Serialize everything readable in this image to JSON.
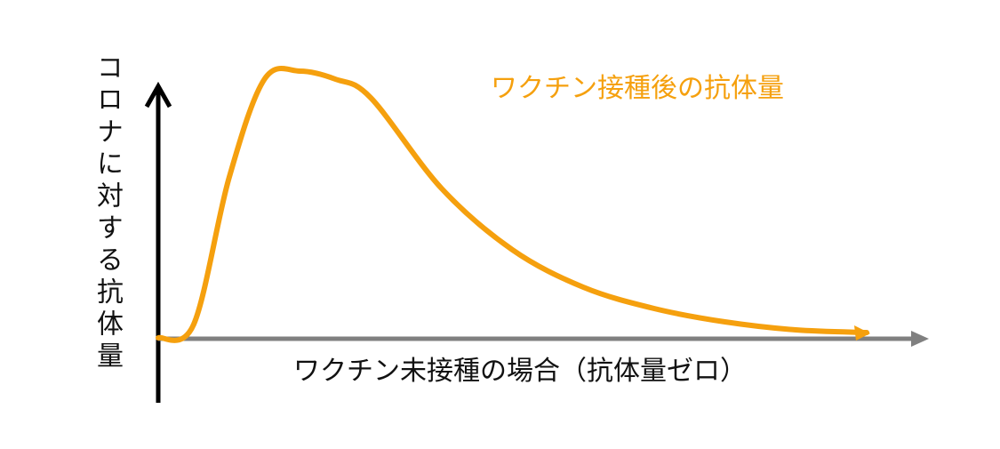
{
  "chart_data": {
    "type": "line",
    "title": "",
    "ylabel": "コロナに対する抗体量",
    "xlabel": "",
    "grid": false,
    "legend": "none",
    "colors": {
      "vaccinated": "#f5a00e",
      "baseline": "#808080",
      "y_axis": "#000000"
    },
    "series": [
      {
        "name": "ワクチン接種後の抗体量",
        "x": [
          0,
          0.05,
          0.1,
          0.15,
          0.2,
          0.25,
          0.3,
          0.4,
          0.5,
          0.6,
          0.7,
          0.8,
          0.9,
          1.0
        ],
        "y": [
          0,
          0.05,
          0.6,
          0.97,
          1.0,
          0.97,
          0.9,
          0.56,
          0.33,
          0.19,
          0.11,
          0.06,
          0.03,
          0.02
        ]
      },
      {
        "name": "ワクチン未接種の場合（抗体量ゼロ）",
        "x": [
          0,
          1.1
        ],
        "y": [
          0,
          0
        ]
      }
    ]
  }
}
